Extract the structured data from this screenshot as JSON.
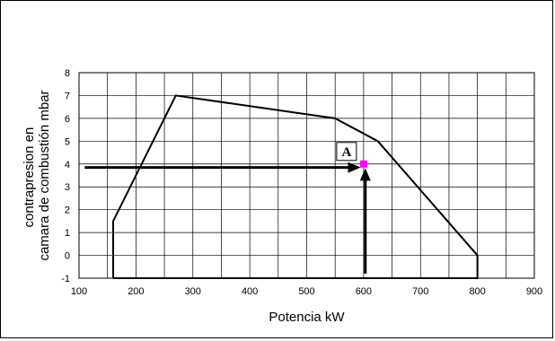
{
  "chart_data": {
    "type": "line",
    "title": "",
    "xlabel": "Potencia kW",
    "ylabel_lines": [
      "contrapresion en",
      "camara de combustión mbar"
    ],
    "xlim": [
      100,
      900
    ],
    "ylim": [
      -1,
      8
    ],
    "x_ticks": [
      100,
      200,
      300,
      400,
      500,
      600,
      700,
      800,
      900
    ],
    "y_ticks": [
      -1,
      0,
      1,
      2,
      3,
      4,
      5,
      6,
      7,
      8
    ],
    "x_tick_labels": [
      "100",
      "200",
      "300",
      "400",
      "500",
      "600",
      "700",
      "800",
      "900"
    ],
    "y_tick_labels": [
      "-1",
      "0",
      "1",
      "2",
      "3",
      "4",
      "5",
      "6",
      "7",
      "8"
    ],
    "minor_x_step": 50,
    "grid": true,
    "series": [
      {
        "values": [
          {
            "x": 160,
            "y": -1
          },
          {
            "x": 160,
            "y": 1.5
          },
          {
            "x": 270,
            "y": 7
          },
          {
            "x": 550,
            "y": 6
          },
          {
            "x": 625,
            "y": 5
          },
          {
            "x": 800,
            "y": 0
          },
          {
            "x": 800,
            "y": -1
          },
          {
            "x": 160,
            "y": -1
          }
        ]
      }
    ],
    "point": {
      "label": "A",
      "x": 600,
      "y": 4,
      "color": "#ff00ff"
    },
    "arrows": [
      {
        "from": {
          "x": 110,
          "y": 3.85
        },
        "to": {
          "x": 590,
          "y": 3.85
        }
      },
      {
        "from": {
          "x": 603,
          "y": -0.8
        },
        "to": {
          "x": 603,
          "y": 3.7
        }
      }
    ]
  }
}
